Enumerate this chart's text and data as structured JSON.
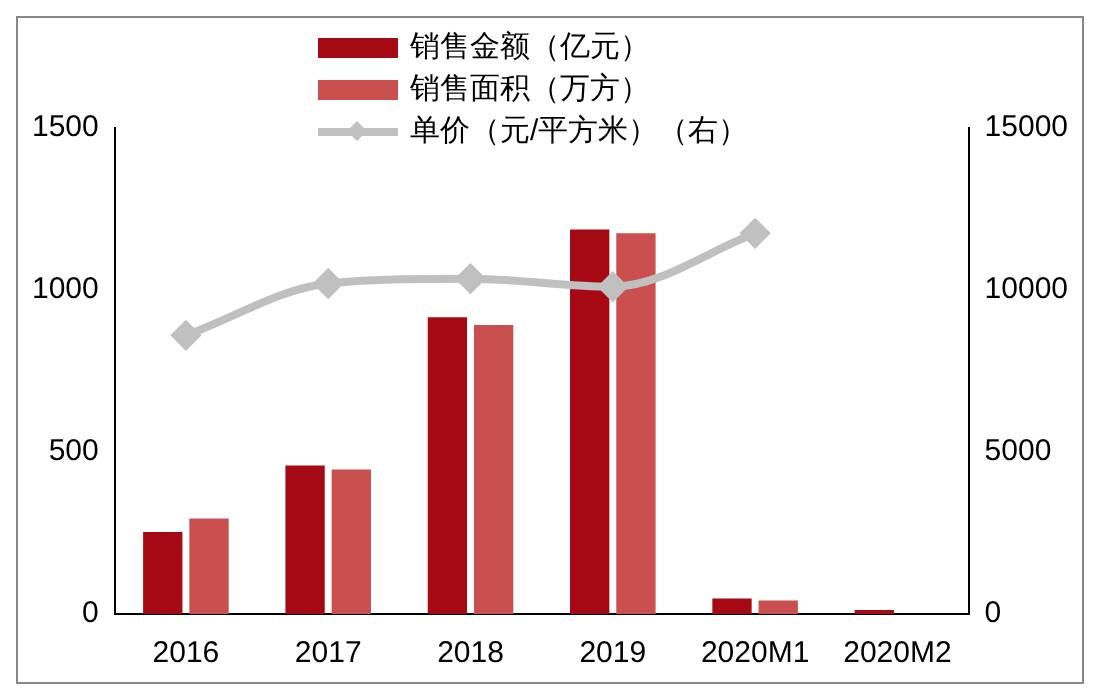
{
  "chart_data": {
    "type": "bar",
    "categories": [
      "2016",
      "2017",
      "2018",
      "2019",
      "2020M1",
      "2020M2"
    ],
    "series": [
      {
        "name": "销售金额（亿元）",
        "color": "#a50a14",
        "values": [
          253,
          458,
          916,
          1187,
          48,
          12
        ]
      },
      {
        "name": "销售面积（万方）",
        "color": "#c9504f",
        "values": [
          295,
          446,
          892,
          1175,
          42,
          null
        ]
      },
      {
        "name": "单价（元/平方米）（右）",
        "type": "line",
        "axis": "y2",
        "color": "#c0c0c0",
        "values": [
          8600,
          10200,
          10350,
          10100,
          11750,
          null
        ]
      }
    ],
    "ylim": [
      0,
      1500
    ],
    "yticks": [
      0,
      500,
      1000,
      1500
    ],
    "y2lim": [
      0,
      15000
    ],
    "y2ticks": [
      0,
      5000,
      10000,
      15000
    ],
    "grid": false,
    "legend": "top",
    "marker": "diamond",
    "line_style": "solid"
  }
}
